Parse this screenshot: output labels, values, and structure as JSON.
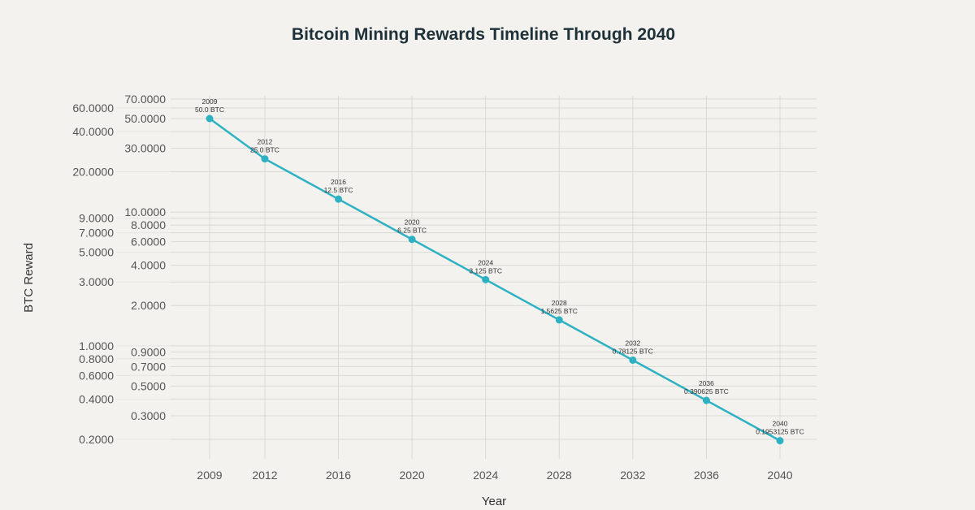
{
  "chart_data": {
    "type": "line",
    "title": "Bitcoin Mining Rewards Timeline Through 2040",
    "xlabel": "Year",
    "ylabel": "BTC Reward",
    "yscale": "log",
    "ylim": [
      0.15,
      75
    ],
    "xlim": [
      2006.8,
      2042
    ],
    "grid": true,
    "x_ticks": [
      2009,
      2012,
      2016,
      2020,
      2024,
      2028,
      2032,
      2036,
      2040
    ],
    "y_ticks": [
      70,
      60,
      50,
      40,
      30,
      20,
      10,
      9,
      8,
      7,
      6,
      5,
      4,
      3,
      2,
      1,
      0.9,
      0.8,
      0.7,
      0.6,
      0.5,
      0.4,
      0.3,
      0.2
    ],
    "y_tick_labels": [
      "70.0000",
      "60.0000",
      "50.0000",
      "40.0000",
      "30.0000",
      "20.0000",
      "10.0000",
      "9.0000",
      "8.0000",
      "7.0000",
      "6.0000",
      "5.0000",
      "4.0000",
      "3.0000",
      "2.0000",
      "1.0000",
      "0.9000",
      "0.8000",
      "0.7000",
      "0.6000",
      "0.5000",
      "0.4000",
      "0.3000",
      "0.2000"
    ],
    "series": [
      {
        "x": [
          2009,
          2012,
          2016,
          2020,
          2024,
          2028,
          2032,
          2036,
          2040
        ],
        "values": [
          50.0,
          25.0,
          12.5,
          6.25,
          3.125,
          1.5625,
          0.78125,
          0.390625,
          0.1953125
        ],
        "labels": [
          "2009\n50.0 BTC",
          "2012\n25.0 BTC",
          "2016\n12.5 BTC",
          "2020\n6.25 BTC",
          "2024\n3.125 BTC",
          "2028\n1.5625 BTC",
          "2032\n0.78125 BTC",
          "2036\n0.390625 BTC",
          "2040\n0.1953125 BTC"
        ],
        "color": "#2fb1c4"
      }
    ]
  }
}
